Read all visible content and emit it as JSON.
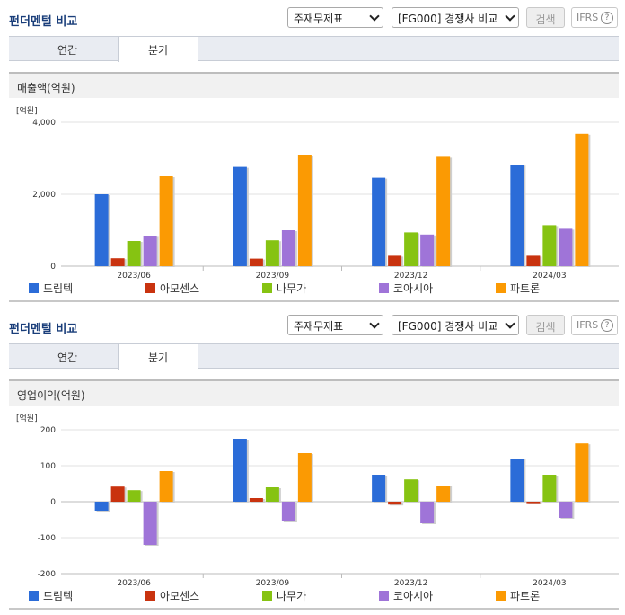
{
  "panels": [
    {
      "title": "펀더멘털 비교",
      "statement_select": "주재무제표",
      "group_select": "[FG000] 경쟁사 비교",
      "search_label": "검색",
      "ifrs_label": "IFRS",
      "help_glyph": "?",
      "tabs": [
        "연간",
        "분기"
      ],
      "active_tab": "분기",
      "metric_label": "매출액(억원)"
    },
    {
      "title": "펀더멘털 비교",
      "statement_select": "주재무제표",
      "group_select": "[FG000] 경쟁사 비교",
      "search_label": "검색",
      "ifrs_label": "IFRS",
      "help_glyph": "?",
      "tabs": [
        "연간",
        "분기"
      ],
      "active_tab": "분기",
      "metric_label": "영업이익(억원)"
    }
  ],
  "colors": {
    "series": [
      "#2b6cd8",
      "#c9330f",
      "#86c312",
      "#9f74d8",
      "#fb9a03"
    ],
    "title": "#1a3e7a",
    "grid": "#d9d9d9"
  },
  "icons": [
    "chevron-down-icon",
    "help-circle-icon"
  ],
  "chart_data": [
    {
      "type": "bar",
      "unit_label": "[억원]",
      "categories": [
        "2023/06",
        "2023/09",
        "2023/12",
        "2024/03"
      ],
      "series": [
        {
          "name": "드림텍",
          "values": [
            2000,
            2760,
            2460,
            2820
          ]
        },
        {
          "name": "아모센스",
          "values": [
            220,
            210,
            290,
            290
          ]
        },
        {
          "name": "나무가",
          "values": [
            700,
            720,
            940,
            1140
          ]
        },
        {
          "name": "코아시아",
          "values": [
            840,
            1000,
            880,
            1040
          ]
        },
        {
          "name": "파트론",
          "values": [
            2500,
            3100,
            3040,
            3680
          ]
        }
      ],
      "ylim": [
        0,
        4000
      ],
      "yticks": [
        0,
        2000,
        4000
      ],
      "ytick_labels": [
        "0",
        "2,000",
        "4,000"
      ],
      "legend": "bottom"
    },
    {
      "type": "bar",
      "unit_label": "[억원]",
      "categories": [
        "2023/06",
        "2023/09",
        "2023/12",
        "2024/03"
      ],
      "series": [
        {
          "name": "드림텍",
          "values": [
            -25,
            175,
            75,
            120
          ]
        },
        {
          "name": "아모센스",
          "values": [
            42,
            10,
            -8,
            -4
          ]
        },
        {
          "name": "나무가",
          "values": [
            32,
            40,
            62,
            75
          ]
        },
        {
          "name": "코아시아",
          "values": [
            -120,
            -55,
            -60,
            -45
          ]
        },
        {
          "name": "파트론",
          "values": [
            85,
            135,
            45,
            162
          ]
        }
      ],
      "ylim": [
        -200,
        200
      ],
      "yticks": [
        -200,
        -100,
        0,
        100,
        200
      ],
      "ytick_labels": [
        "-200",
        "-100",
        "0",
        "100",
        "200"
      ],
      "legend": "bottom"
    }
  ]
}
